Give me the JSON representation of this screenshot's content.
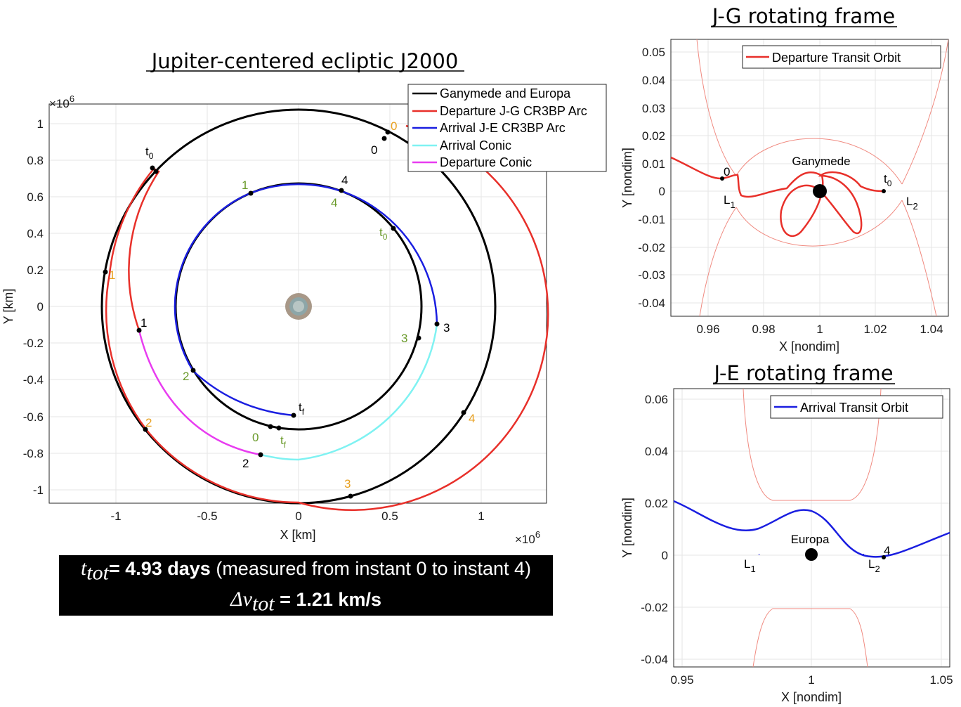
{
  "main_plot": {
    "title": "Jupiter-centered ecliptic J2000",
    "xlabel": "X [km]",
    "ylabel": "Y [km]",
    "exponent_label": "×10",
    "exponent_power": "6",
    "xticks": [
      "-1",
      "-0.5",
      "0",
      "0.5",
      "1"
    ],
    "yticks": [
      "1",
      "0.8",
      "0.6",
      "0.4",
      "0.2",
      "0",
      "-0.2",
      "-0.4",
      "-0.6",
      "-0.8",
      "-1"
    ],
    "legend": [
      "Ganymede and Europa",
      "Departure J-G CR3BP Arc",
      "Arrival J-E CR3BP Arc",
      "Arrival Conic",
      "Departure Conic"
    ],
    "colors": {
      "moons": "#000000",
      "departure_arc": "#e8302a",
      "arrival_arc": "#1a1ee0",
      "arrival_conic": "#7ff2f2",
      "departure_conic": "#e83cf0",
      "orange_label": "#e8a020",
      "green_label": "#6a9a2a"
    }
  },
  "jg_plot": {
    "title": "J-G rotating frame",
    "xlabel": "X [nondim]",
    "ylabel": "Y [nondim]",
    "xticks": [
      "0.96",
      "0.98",
      "1",
      "1.02",
      "1.04"
    ],
    "yticks": [
      "0.05",
      "0.04",
      "0.03",
      "0.02",
      "0.01",
      "0",
      "-0.01",
      "-0.02",
      "-0.03",
      "-0.04"
    ],
    "legend": "Departure Transit Orbit",
    "body": "Ganymede",
    "labels": {
      "start": "0",
      "end": "t",
      "end_sub": "0",
      "l1": "L",
      "l1_sub": "1",
      "l2": "L",
      "l2_sub": "2"
    }
  },
  "je_plot": {
    "title": "J-E rotating frame",
    "xlabel": "X [nondim]",
    "ylabel": "Y [nondim]",
    "xticks": [
      "0.95",
      "1",
      "1.05"
    ],
    "yticks": [
      "0.06",
      "0.04",
      "0.02",
      "0",
      "-0.02",
      "-0.04"
    ],
    "legend": "Arrival Transit Orbit",
    "body": "Europa",
    "labels": {
      "end": "4",
      "l1": "L",
      "l1_sub": "1",
      "l2": "L",
      "l2_sub": "2"
    }
  },
  "summary": {
    "t_symbol": "t",
    "t_sub": "tot",
    "t_value": "= 4.93 days",
    "t_note": " (measured from instant 0 to instant 4)",
    "dv_symbol": "Δv",
    "dv_sub": "tot",
    "dv_value": " = 1.21 km/s"
  },
  "chart_data": [
    {
      "type": "line",
      "title": "Jupiter-centered ecliptic J2000",
      "xlabel": "X [km]",
      "ylabel": "Y [km]",
      "xlim": [
        -1360000.0,
        1360000.0
      ],
      "ylim": [
        -1070000.0,
        1070000.0
      ],
      "series": [
        {
          "name": "Ganymede and Europa",
          "description": "circles r=1.07e6 and r=0.67e6 km"
        },
        {
          "name": "Departure J-G CR3BP Arc"
        },
        {
          "name": "Arrival J-E CR3BP Arc"
        },
        {
          "name": "Arrival Conic"
        },
        {
          "name": "Departure Conic"
        }
      ]
    },
    {
      "type": "line",
      "title": "J-G rotating frame",
      "xlim": [
        0.947,
        1.043
      ],
      "ylim": [
        -0.044,
        0.055
      ],
      "series": [
        {
          "name": "Departure Transit Orbit"
        }
      ]
    },
    {
      "type": "line",
      "title": "J-E rotating frame",
      "xlim": [
        0.945,
        1.052
      ],
      "ylim": [
        -0.042,
        0.065
      ],
      "series": [
        {
          "name": "Arrival Transit Orbit"
        }
      ]
    }
  ]
}
